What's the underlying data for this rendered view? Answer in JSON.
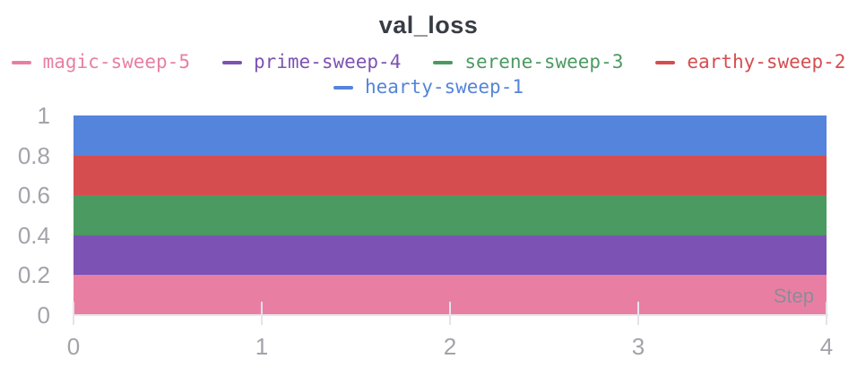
{
  "panel": {
    "title": "val_loss"
  },
  "chart_data": {
    "type": "area",
    "title": "val_loss",
    "xlabel": "Step",
    "ylabel": "",
    "x": [
      0,
      1,
      2,
      3,
      4
    ],
    "xlim": [
      0,
      4
    ],
    "ylim": [
      0,
      1
    ],
    "xticks": [
      "0",
      "1",
      "2",
      "3",
      "4"
    ],
    "yticks": [
      "0",
      "0.2",
      "0.4",
      "0.6",
      "0.8",
      "1"
    ],
    "grid": false,
    "legend_position": "top",
    "series": [
      {
        "name": "hearty-sweep-1",
        "color": "#5484DB",
        "values": [
          1.0,
          1.0,
          1.0,
          1.0,
          1.0
        ]
      },
      {
        "name": "earthy-sweep-2",
        "color": "#D64D4F",
        "values": [
          0.8,
          0.8,
          0.8,
          0.8,
          0.8
        ]
      },
      {
        "name": "serene-sweep-3",
        "color": "#4B9A61",
        "values": [
          0.6,
          0.6,
          0.6,
          0.6,
          0.6
        ]
      },
      {
        "name": "prime-sweep-4",
        "color": "#7C53B4",
        "values": [
          0.4,
          0.4,
          0.4,
          0.4,
          0.4
        ]
      },
      {
        "name": "magic-sweep-5",
        "color": "#E87FA3",
        "values": [
          0.2,
          0.2,
          0.2,
          0.2,
          0.2
        ]
      }
    ],
    "legend_rows": [
      [
        "magic-sweep-5",
        "prime-sweep-4",
        "serene-sweep-3",
        "earthy-sweep-2"
      ],
      [
        "hearty-sweep-1"
      ]
    ]
  },
  "colors": {
    "title_text": "#373C44",
    "axis_label": "#A2A3AB",
    "axis_line": "#E7E7EB",
    "tick_line": "#E3E3E9",
    "step_label": "#8F8B96"
  }
}
